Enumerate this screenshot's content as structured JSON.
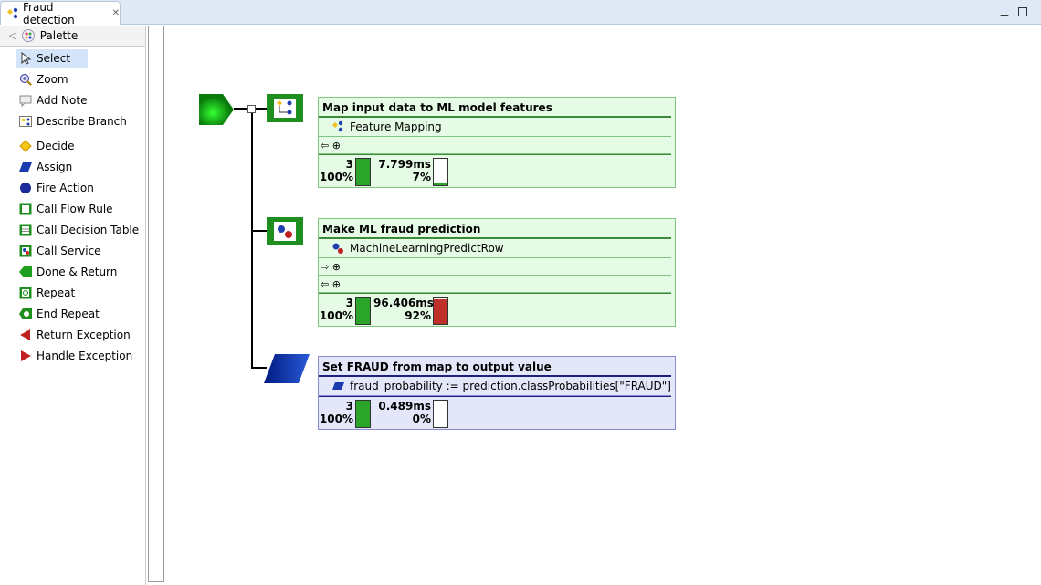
{
  "tab": {
    "title": "Fraud detection",
    "icon": "flow-rule-icon"
  },
  "window": {
    "minimize": "minimize-icon",
    "maximize": "maximize-icon"
  },
  "palette": {
    "title": "Palette",
    "items": [
      {
        "label": "Select",
        "icon": "pointer-icon",
        "selected": true
      },
      {
        "label": "Zoom",
        "icon": "zoom-icon"
      },
      {
        "label": "Add Note",
        "icon": "note-icon"
      },
      {
        "label": "Describe Branch",
        "icon": "branch-icon"
      },
      {
        "label": "Decide",
        "icon": "diamond-icon"
      },
      {
        "label": "Assign",
        "icon": "parallelogram-icon"
      },
      {
        "label": "Fire Action",
        "icon": "circle-icon"
      },
      {
        "label": "Call Flow Rule",
        "icon": "flow-rule-icon"
      },
      {
        "label": "Call Decision Table",
        "icon": "decision-table-icon"
      },
      {
        "label": "Call Service",
        "icon": "service-icon"
      },
      {
        "label": "Done & Return",
        "icon": "done-icon"
      },
      {
        "label": "Repeat",
        "icon": "repeat-icon"
      },
      {
        "label": "End Repeat",
        "icon": "end-repeat-icon"
      },
      {
        "label": "Return Exception",
        "icon": "return-exception-icon"
      },
      {
        "label": "Handle Exception",
        "icon": "handle-exception-icon"
      }
    ]
  },
  "nodes": [
    {
      "title": "Map input data to ML model features",
      "call": "Feature Mapping",
      "count": "3",
      "count_pct": "100%",
      "time": "7.799ms",
      "time_pct": "7%",
      "time_fraction": 0.07,
      "color": "green"
    },
    {
      "title": "Make ML fraud prediction",
      "call": "MachineLearningPredictRow",
      "count": "3",
      "count_pct": "100%",
      "time": "96.406ms",
      "time_pct": "92%",
      "time_fraction": 0.92,
      "color": "green"
    },
    {
      "title": "Set FRAUD from map to output value",
      "call": "fraud_probability := prediction.classProbabilities[\"FRAUD\"]",
      "count": "3",
      "count_pct": "100%",
      "time": "0.489ms",
      "time_pct": "0%",
      "time_fraction": 0,
      "color": "blue"
    }
  ],
  "colors": {
    "count_bar": "#2aa52a",
    "time_bar_high": "#c0302a",
    "node_green": "#e6fbe6",
    "node_blue": "#e4e6fa"
  }
}
